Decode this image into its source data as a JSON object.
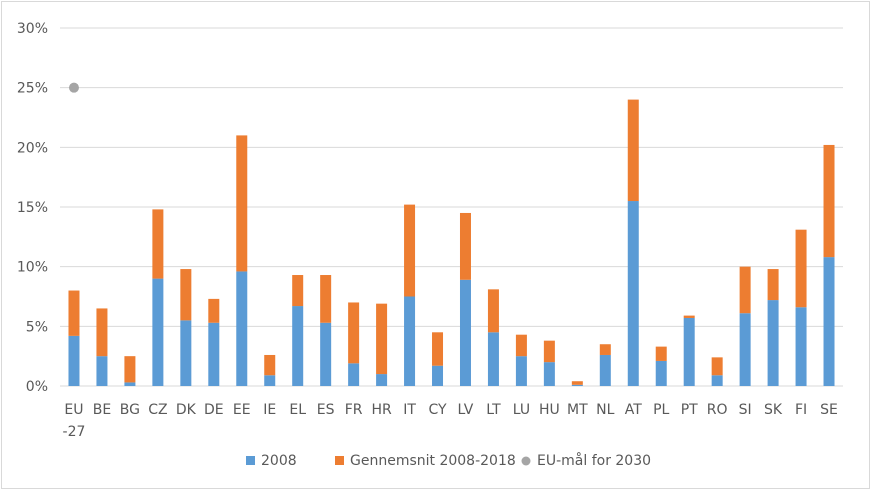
{
  "chart_data": {
    "type": "bar",
    "stacked": true,
    "categories": [
      "EU -27",
      "BE",
      "BG",
      "CZ",
      "DK",
      "DE",
      "EE",
      "IE",
      "EL",
      "ES",
      "FR",
      "HR",
      "IT",
      "CY",
      "LV",
      "LT",
      "LU",
      "HU",
      "MT",
      "NL",
      "AT",
      "PL",
      "PT",
      "RO",
      "SI",
      "SK",
      "FI",
      "SE"
    ],
    "series": [
      {
        "name": "2008",
        "color": "#5b9bd5",
        "values": [
          4.2,
          2.5,
          0.3,
          9.0,
          5.5,
          5.3,
          9.6,
          0.9,
          6.7,
          5.3,
          1.9,
          1.0,
          7.5,
          1.7,
          8.9,
          4.5,
          2.5,
          2.0,
          0.1,
          2.6,
          15.5,
          2.1,
          5.7,
          0.9,
          6.1,
          7.2,
          6.6,
          10.8
        ]
      },
      {
        "name": "Gennemsnit 2008-2018",
        "color": "#ed7d31",
        "values": [
          3.8,
          4.0,
          2.2,
          5.8,
          4.3,
          2.0,
          11.4,
          1.7,
          2.6,
          4.0,
          5.1,
          5.9,
          7.7,
          2.8,
          5.6,
          3.6,
          1.8,
          1.8,
          0.3,
          0.9,
          8.5,
          1.2,
          0.2,
          1.5,
          3.9,
          2.6,
          6.5,
          9.4
        ]
      }
    ],
    "target": {
      "name": "EU-mål for 2030",
      "category": "EU -27",
      "value": 25,
      "color": "#a5a5a5"
    },
    "y_ticks": [
      "0%",
      "5%",
      "10%",
      "15%",
      "20%",
      "25%",
      "30%"
    ],
    "y_tick_values": [
      0,
      5,
      10,
      15,
      20,
      25,
      30
    ],
    "ylim": [
      0,
      30
    ],
    "grid": true,
    "legend_position": "bottom"
  }
}
